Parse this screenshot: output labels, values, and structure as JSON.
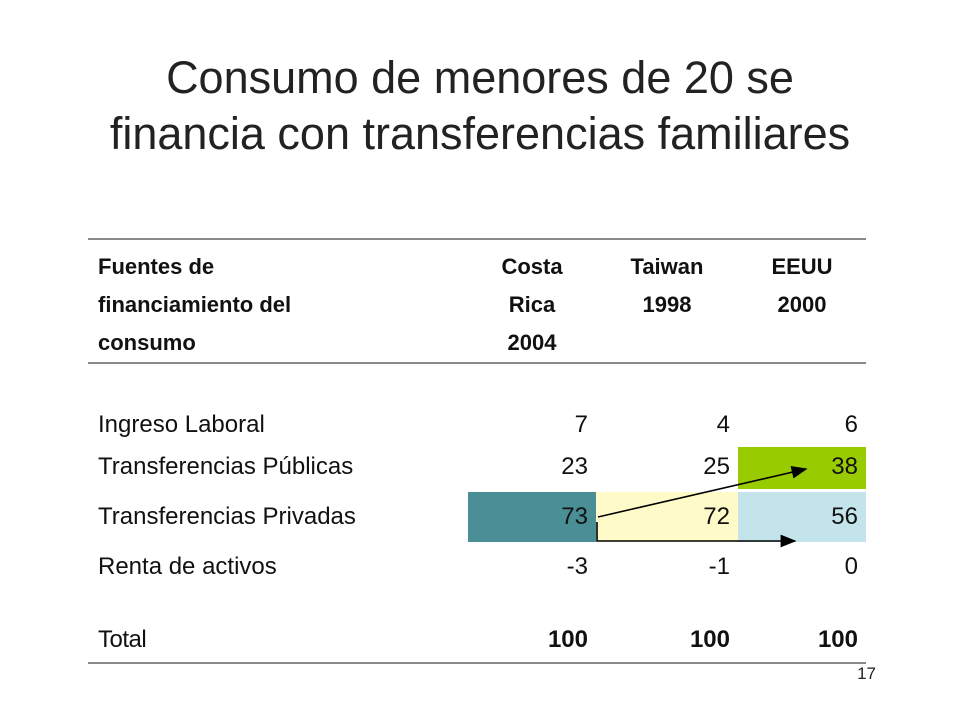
{
  "title": {
    "line1": "Consumo de menores de 20 se",
    "line2": "financia con transferencias familiares"
  },
  "table": {
    "header": {
      "source_col": [
        "Fuentes de",
        "financiamiento del",
        "consumo"
      ],
      "costa_rica": [
        "Costa",
        "Rica",
        "2004"
      ],
      "taiwan": [
        "Taiwan",
        "1998"
      ],
      "eeuu": [
        "EEUU",
        "2000"
      ]
    },
    "rows": [
      {
        "label": "Ingreso Laboral",
        "costa_rica": "7",
        "taiwan": "4",
        "eeuu": "6"
      },
      {
        "label": "Transferencias Públicas",
        "costa_rica": "23",
        "taiwan": "25",
        "eeuu": "38"
      },
      {
        "label": "Transferencias Privadas",
        "costa_rica": "73",
        "taiwan": "72",
        "eeuu": "56"
      },
      {
        "label": "Renta de activos",
        "costa_rica": "-3",
        "taiwan": "-1",
        "eeuu": "0"
      }
    ],
    "total": {
      "label": "Total",
      "costa_rica": "100",
      "taiwan": "100",
      "eeuu": "100"
    }
  },
  "highlight_colors": {
    "costa_rica_privadas": "#4a8f96",
    "taiwan_privadas": "#fffbc8",
    "eeuu_privadas": "#c3e4ea",
    "eeuu_publicas": "#99cc00"
  },
  "page_number": "17"
}
